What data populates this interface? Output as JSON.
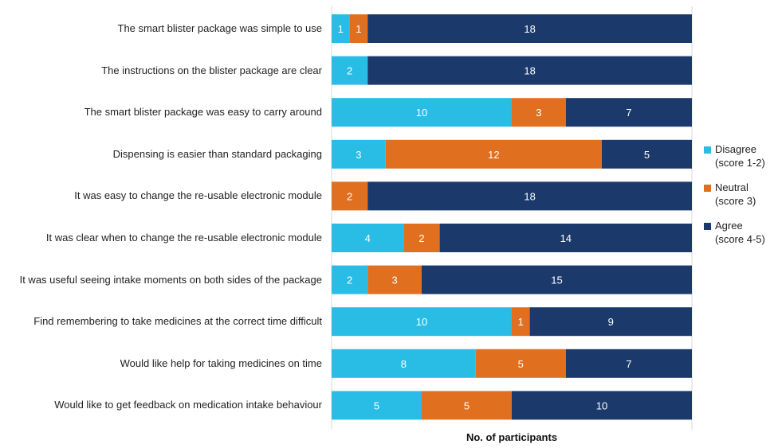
{
  "chart_data": {
    "type": "bar",
    "orientation": "horizontal",
    "stacked": true,
    "categories": [
      "The smart blister package was simple to use",
      "The instructions on the blister package are clear",
      "The smart blister package was easy to carry around",
      "Dispensing is easier than standard packaging",
      "It was easy to change the re-usable electronic module",
      "It was clear when to change the re-usable electronic module",
      "It was useful seeing intake moments on both sides of the package",
      "Find remembering to take medicines at the correct time difficult",
      "Would like help for taking medicines on time",
      "Would like to get feedback on medication intake behaviour"
    ],
    "series": [
      {
        "name": "Disagree (score 1-2)",
        "color": "#29BDE6",
        "values": [
          1,
          2,
          10,
          3,
          0,
          4,
          2,
          10,
          8,
          5
        ]
      },
      {
        "name": "Neutral (score 3)",
        "color": "#E07020",
        "values": [
          1,
          0,
          3,
          12,
          2,
          2,
          3,
          1,
          5,
          5
        ]
      },
      {
        "name": "Agree (score 4-5)",
        "color": "#1B3A6B",
        "values": [
          18,
          18,
          7,
          5,
          18,
          14,
          15,
          9,
          7,
          10
        ]
      }
    ],
    "legend_lines": [
      [
        "Disagree",
        "(score 1-2)"
      ],
      [
        "Neutral",
        "(score 3)"
      ],
      [
        "Agree",
        "(score 4-5)"
      ]
    ],
    "xlabel": "No. of participants",
    "ylabel": "",
    "xlim": [
      0,
      20
    ],
    "legend_position": "right",
    "grid": false
  }
}
